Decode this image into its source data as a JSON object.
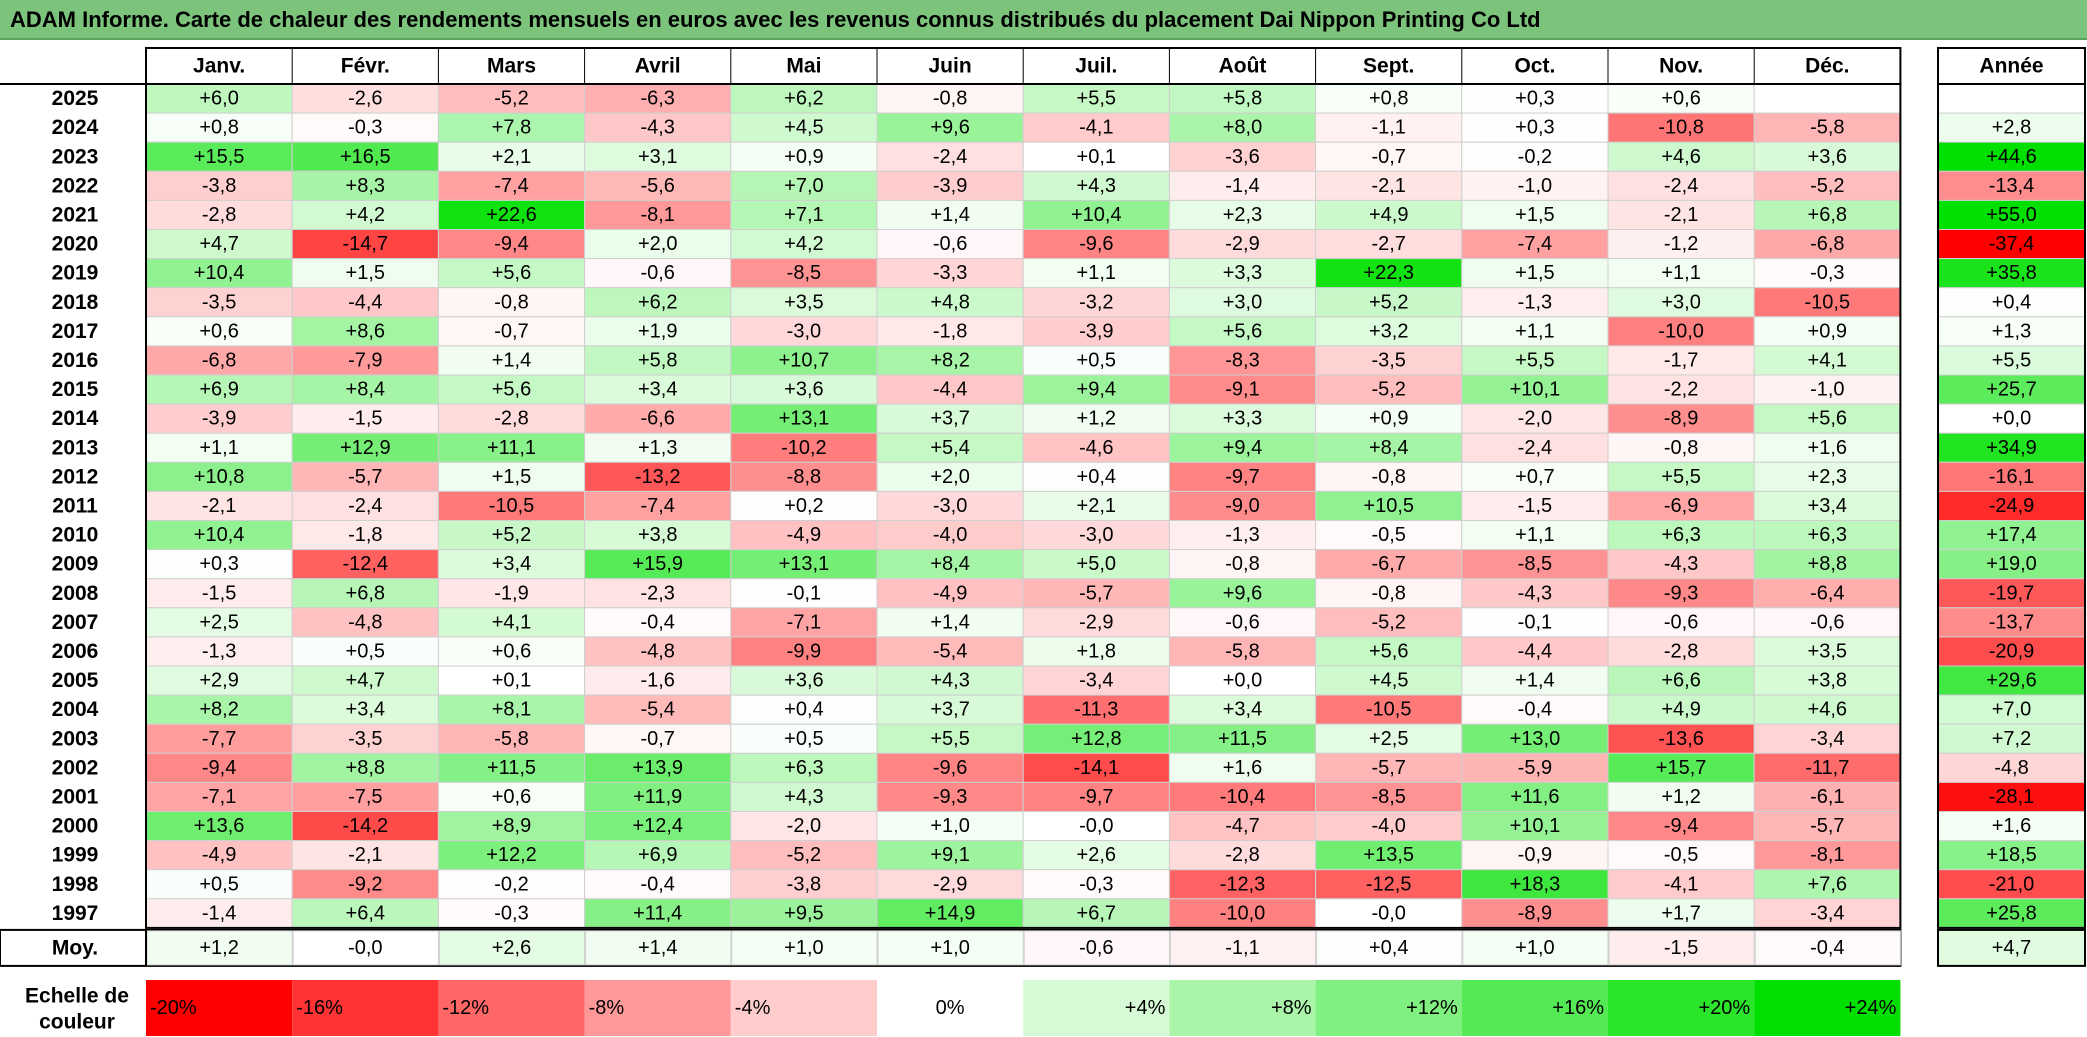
{
  "title": "ADAM Informe. Carte de chaleur des rendements mensuels en euros avec les revenus connus distribués du placement Dai Nippon Printing Co Ltd",
  "chart_data": {
    "type": "heatmap",
    "title": "ADAM Informe. Carte de chaleur des rendements mensuels en euros avec les revenus connus distribués du placement Dai Nippon Printing Co Ltd",
    "months": [
      "Janv.",
      "Févr.",
      "Mars",
      "Avril",
      "Mai",
      "Juin",
      "Juil.",
      "Août",
      "Sept.",
      "Oct.",
      "Nov.",
      "Déc."
    ],
    "year_header": "Année",
    "rows": [
      {
        "year": "2025",
        "values": [
          6.0,
          -2.6,
          -5.2,
          -6.3,
          6.2,
          -0.8,
          5.5,
          5.8,
          0.8,
          0.3,
          0.6,
          null
        ],
        "annual": null
      },
      {
        "year": "2024",
        "values": [
          0.8,
          -0.3,
          7.8,
          -4.3,
          4.5,
          9.6,
          -4.1,
          8.0,
          -1.1,
          0.3,
          -10.8,
          -5.8
        ],
        "annual": 2.8
      },
      {
        "year": "2023",
        "values": [
          15.5,
          16.5,
          2.1,
          3.1,
          0.9,
          -2.4,
          0.1,
          -3.6,
          -0.7,
          -0.2,
          4.6,
          3.6
        ],
        "annual": 44.6
      },
      {
        "year": "2022",
        "values": [
          -3.8,
          8.3,
          -7.4,
          -5.6,
          7.0,
          -3.9,
          4.3,
          -1.4,
          -2.1,
          -1.0,
          -2.4,
          -5.2
        ],
        "annual": -13.4
      },
      {
        "year": "2021",
        "values": [
          -2.8,
          4.2,
          22.6,
          -8.1,
          7.1,
          1.4,
          10.4,
          2.3,
          4.9,
          1.5,
          -2.1,
          6.8
        ],
        "annual": 55.0
      },
      {
        "year": "2020",
        "values": [
          4.7,
          -14.7,
          -9.4,
          2.0,
          4.2,
          -0.6,
          -9.6,
          -2.9,
          -2.7,
          -7.4,
          -1.2,
          -6.8
        ],
        "annual": -37.4
      },
      {
        "year": "2019",
        "values": [
          10.4,
          1.5,
          5.6,
          -0.6,
          -8.5,
          -3.3,
          1.1,
          3.3,
          22.3,
          1.5,
          1.1,
          -0.3
        ],
        "annual": 35.8
      },
      {
        "year": "2018",
        "values": [
          -3.5,
          -4.4,
          -0.8,
          6.2,
          3.5,
          4.8,
          -3.2,
          3.0,
          5.2,
          -1.3,
          3.0,
          -10.5
        ],
        "annual": 0.4
      },
      {
        "year": "2017",
        "values": [
          0.6,
          8.6,
          -0.7,
          1.9,
          -3.0,
          -1.8,
          -3.9,
          5.6,
          3.2,
          1.1,
          -10.0,
          0.9
        ],
        "annual": 1.3
      },
      {
        "year": "2016",
        "values": [
          -6.8,
          -7.9,
          1.4,
          5.8,
          10.7,
          8.2,
          0.5,
          -8.3,
          -3.5,
          5.5,
          -1.7,
          4.1
        ],
        "annual": 5.5
      },
      {
        "year": "2015",
        "values": [
          6.9,
          8.4,
          5.6,
          3.4,
          3.6,
          -4.4,
          9.4,
          -9.1,
          -5.2,
          10.1,
          -2.2,
          -1.0
        ],
        "annual": 25.7
      },
      {
        "year": "2014",
        "values": [
          -3.9,
          -1.5,
          -2.8,
          -6.6,
          13.1,
          3.7,
          1.2,
          3.3,
          0.9,
          -2.0,
          -8.9,
          5.6
        ],
        "annual": 0.0
      },
      {
        "year": "2013",
        "values": [
          1.1,
          12.9,
          11.1,
          1.3,
          -10.2,
          5.4,
          -4.6,
          9.4,
          8.4,
          -2.4,
          -0.8,
          1.6
        ],
        "annual": 34.9
      },
      {
        "year": "2012",
        "values": [
          10.8,
          -5.7,
          1.5,
          -13.2,
          -8.8,
          2.0,
          0.4,
          -9.7,
          -0.8,
          0.7,
          5.5,
          2.3
        ],
        "annual": -16.1
      },
      {
        "year": "2011",
        "values": [
          -2.1,
          -2.4,
          -10.5,
          -7.4,
          0.2,
          -3.0,
          2.1,
          -9.0,
          10.5,
          -1.5,
          -6.9,
          3.4
        ],
        "annual": -24.9
      },
      {
        "year": "2010",
        "values": [
          10.4,
          -1.8,
          5.2,
          3.8,
          -4.9,
          -4.0,
          -3.0,
          -1.3,
          -0.5,
          1.1,
          6.3,
          6.3
        ],
        "annual": 17.4
      },
      {
        "year": "2009",
        "values": [
          0.3,
          -12.4,
          3.4,
          15.9,
          13.1,
          8.4,
          5.0,
          -0.8,
          -6.7,
          -8.5,
          -4.3,
          8.8
        ],
        "annual": 19.0
      },
      {
        "year": "2008",
        "values": [
          -1.5,
          6.8,
          -1.9,
          -2.3,
          -0.1,
          -4.9,
          -5.7,
          9.6,
          -0.8,
          -4.3,
          -9.3,
          -6.4
        ],
        "annual": -19.7
      },
      {
        "year": "2007",
        "values": [
          2.5,
          -4.8,
          4.1,
          -0.4,
          -7.1,
          1.4,
          -2.9,
          -0.6,
          -5.2,
          -0.1,
          -0.6,
          -0.6
        ],
        "annual": -13.7
      },
      {
        "year": "2006",
        "values": [
          -1.3,
          0.5,
          0.6,
          -4.8,
          -9.9,
          -5.4,
          1.8,
          -5.8,
          5.6,
          -4.4,
          -2.8,
          3.5
        ],
        "annual": -20.9
      },
      {
        "year": "2005",
        "values": [
          2.9,
          4.7,
          0.1,
          -1.6,
          3.6,
          4.3,
          -3.4,
          0.0,
          4.5,
          1.4,
          6.6,
          3.8
        ],
        "annual": 29.6
      },
      {
        "year": "2004",
        "values": [
          8.2,
          3.4,
          8.1,
          -5.4,
          0.4,
          3.7,
          -11.3,
          3.4,
          -10.5,
          -0.4,
          4.9,
          4.6
        ],
        "annual": 7.0
      },
      {
        "year": "2003",
        "values": [
          -7.7,
          -3.5,
          -5.8,
          -0.7,
          0.5,
          5.5,
          12.8,
          11.5,
          2.5,
          13.0,
          -13.6,
          -3.4
        ],
        "annual": 7.2
      },
      {
        "year": "2002",
        "values": [
          -9.4,
          8.8,
          11.5,
          13.9,
          6.3,
          -9.6,
          -14.1,
          1.6,
          -5.7,
          -5.9,
          15.7,
          -11.7
        ],
        "annual": -4.8
      },
      {
        "year": "2001",
        "values": [
          -7.1,
          -7.5,
          0.6,
          11.9,
          4.3,
          -9.3,
          -9.7,
          -10.4,
          -8.5,
          11.6,
          1.2,
          -6.1
        ],
        "annual": -28.1
      },
      {
        "year": "2000",
        "values": [
          13.6,
          -14.2,
          8.9,
          12.4,
          -2.0,
          1.0,
          -0.0,
          -4.7,
          -4.0,
          10.1,
          -9.4,
          -5.7
        ],
        "annual": 1.6
      },
      {
        "year": "1999",
        "values": [
          -4.9,
          -2.1,
          12.2,
          6.9,
          -5.2,
          9.1,
          2.6,
          -2.8,
          13.5,
          -0.9,
          -0.5,
          -8.1
        ],
        "annual": 18.5
      },
      {
        "year": "1998",
        "values": [
          0.5,
          -9.2,
          -0.2,
          -0.4,
          -3.8,
          -2.9,
          -0.3,
          -12.3,
          -12.5,
          18.3,
          -4.1,
          7.6
        ],
        "annual": -21.0
      },
      {
        "year": "1997",
        "values": [
          -1.4,
          6.4,
          -0.3,
          11.4,
          9.5,
          14.9,
          6.7,
          -10.0,
          -0.0,
          -8.9,
          1.7,
          -3.4
        ],
        "annual": 25.8
      }
    ],
    "average": {
      "label": "Moy.",
      "values": [
        1.2,
        -0.0,
        2.6,
        1.4,
        1.0,
        1.0,
        -0.6,
        -1.1,
        0.4,
        1.0,
        -1.5,
        -0.4
      ],
      "annual": 4.7
    },
    "legend": {
      "label_line1": "Echelle de",
      "label_line2": "couleur",
      "stops": [
        "-20%",
        "-16%",
        "-12%",
        "-8%",
        "-4%",
        "0%",
        "+4%",
        "+8%",
        "+12%",
        "+16%",
        "+20%",
        "+24%"
      ],
      "stop_values": [
        -20,
        -16,
        -12,
        -8,
        -4,
        0,
        4,
        8,
        12,
        16,
        20,
        24
      ]
    },
    "colors": {
      "negative": "#ff0000",
      "neutral": "#ffffff",
      "positive": "#00e000",
      "title_bar": "#7cc47c"
    }
  }
}
